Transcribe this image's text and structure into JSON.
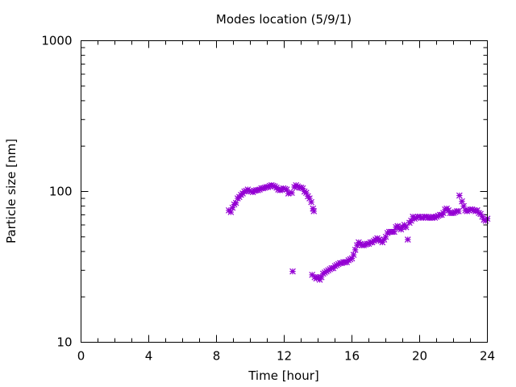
{
  "chart_data": {
    "type": "scatter",
    "title": "Modes location (5/9/1)",
    "xlabel": "Time [hour]",
    "ylabel": "Particle size [nm]",
    "xlim": [
      0,
      24
    ],
    "ylim": [
      10,
      1000
    ],
    "yscale": "log",
    "grid": false,
    "legend": "none",
    "marker_color": "#9400d3",
    "marker": "star",
    "xticks": [
      0,
      4,
      8,
      12,
      16,
      20,
      24
    ],
    "xtick_labels": [
      "0",
      "4",
      "8",
      "12",
      "16",
      "20",
      "24"
    ],
    "yticks": [
      10,
      100,
      1000
    ],
    "ytick_labels": [
      "10",
      "100",
      "1000"
    ],
    "series": [
      {
        "points": [
          [
            8.73,
            75
          ],
          [
            8.85,
            73
          ],
          [
            8.95,
            78
          ],
          [
            9.05,
            82
          ],
          [
            9.15,
            84
          ],
          [
            9.25,
            90
          ],
          [
            9.35,
            92
          ],
          [
            9.45,
            95
          ],
          [
            9.55,
            97
          ],
          [
            9.65,
            100
          ],
          [
            9.75,
            101
          ],
          [
            9.85,
            103
          ],
          [
            9.95,
            101
          ],
          [
            10.05,
            100
          ],
          [
            10.15,
            99
          ],
          [
            10.25,
            101
          ],
          [
            10.35,
            102
          ],
          [
            10.45,
            102
          ],
          [
            10.55,
            103
          ],
          [
            10.65,
            105
          ],
          [
            10.75,
            105
          ],
          [
            10.85,
            106
          ],
          [
            10.95,
            107
          ],
          [
            11.05,
            107
          ],
          [
            11.15,
            109
          ],
          [
            11.25,
            110
          ],
          [
            11.35,
            109
          ],
          [
            11.45,
            108
          ],
          [
            11.55,
            106
          ],
          [
            11.65,
            103
          ],
          [
            11.75,
            102
          ],
          [
            11.85,
            103
          ],
          [
            11.95,
            105
          ],
          [
            12.05,
            104
          ],
          [
            12.15,
            103
          ],
          [
            12.25,
            97
          ],
          [
            12.45,
            98
          ],
          [
            12.6,
            107
          ],
          [
            12.7,
            110
          ],
          [
            12.8,
            108
          ],
          [
            12.9,
            106
          ],
          [
            13.0,
            106
          ],
          [
            13.1,
            105
          ],
          [
            13.2,
            100
          ],
          [
            13.3,
            98
          ],
          [
            13.4,
            93
          ],
          [
            13.5,
            90
          ],
          [
            13.6,
            85
          ],
          [
            13.7,
            77
          ],
          [
            13.75,
            74
          ]
        ]
      },
      {
        "points": [
          [
            12.5,
            29.5
          ],
          [
            13.65,
            28
          ],
          [
            13.8,
            27
          ],
          [
            13.9,
            26.5
          ],
          [
            14.0,
            27
          ],
          [
            14.1,
            26
          ],
          [
            14.2,
            27
          ],
          [
            14.3,
            28.5
          ],
          [
            14.4,
            29
          ],
          [
            14.5,
            29.5
          ],
          [
            14.6,
            30
          ],
          [
            14.7,
            30.5
          ],
          [
            14.8,
            31
          ],
          [
            14.9,
            31
          ],
          [
            15.0,
            32
          ],
          [
            15.1,
            32.5
          ],
          [
            15.2,
            33
          ],
          [
            15.3,
            33.5
          ],
          [
            15.4,
            33.5
          ],
          [
            15.5,
            34
          ],
          [
            15.6,
            34
          ],
          [
            15.7,
            34
          ],
          [
            15.8,
            35
          ],
          [
            15.9,
            35.5
          ],
          [
            16.0,
            36
          ],
          [
            16.1,
            38
          ],
          [
            16.2,
            41
          ],
          [
            16.3,
            44
          ],
          [
            16.4,
            46
          ],
          [
            16.5,
            45
          ],
          [
            16.6,
            44
          ],
          [
            16.7,
            44
          ],
          [
            16.8,
            44.5
          ],
          [
            16.9,
            45
          ],
          [
            17.0,
            45
          ],
          [
            17.1,
            46
          ],
          [
            17.2,
            46
          ],
          [
            17.3,
            47
          ],
          [
            17.4,
            48
          ],
          [
            17.5,
            49
          ],
          [
            17.6,
            48
          ],
          [
            17.7,
            47
          ],
          [
            17.8,
            46
          ],
          [
            17.9,
            48
          ],
          [
            18.0,
            50
          ],
          [
            18.1,
            53
          ],
          [
            18.2,
            54
          ],
          [
            18.3,
            54
          ],
          [
            18.4,
            54
          ],
          [
            18.5,
            54
          ],
          [
            18.6,
            58
          ],
          [
            18.7,
            59
          ],
          [
            18.8,
            57
          ],
          [
            18.9,
            56
          ],
          [
            19.0,
            58
          ],
          [
            19.1,
            60
          ],
          [
            19.2,
            58
          ],
          [
            19.3,
            48
          ],
          [
            19.4,
            62
          ],
          [
            19.5,
            64
          ],
          [
            19.6,
            68
          ],
          [
            19.7,
            66
          ],
          [
            19.8,
            67
          ],
          [
            19.9,
            68
          ],
          [
            20.0,
            68
          ],
          [
            20.1,
            67
          ],
          [
            20.2,
            67
          ],
          [
            20.3,
            68
          ],
          [
            20.4,
            68
          ],
          [
            20.5,
            67
          ],
          [
            20.6,
            67
          ],
          [
            20.7,
            67
          ],
          [
            20.8,
            68
          ],
          [
            20.9,
            67
          ],
          [
            21.0,
            68
          ],
          [
            21.1,
            69
          ],
          [
            21.2,
            70
          ],
          [
            21.3,
            70
          ],
          [
            21.4,
            72
          ],
          [
            21.5,
            76
          ],
          [
            21.6,
            77
          ],
          [
            21.7,
            75
          ],
          [
            21.8,
            72
          ],
          [
            21.9,
            72
          ],
          [
            22.0,
            72
          ],
          [
            22.1,
            73
          ],
          [
            22.2,
            74
          ],
          [
            22.3,
            74
          ],
          [
            22.35,
            94
          ],
          [
            22.5,
            86
          ],
          [
            22.6,
            80
          ],
          [
            22.7,
            75
          ],
          [
            22.8,
            74
          ],
          [
            22.9,
            75
          ],
          [
            23.0,
            76
          ],
          [
            23.1,
            76
          ],
          [
            23.2,
            75
          ],
          [
            23.3,
            74
          ],
          [
            23.4,
            75
          ],
          [
            23.5,
            72
          ],
          [
            23.6,
            71
          ],
          [
            23.7,
            68
          ],
          [
            23.8,
            65
          ],
          [
            23.9,
            64
          ],
          [
            24.0,
            66
          ]
        ]
      }
    ]
  }
}
